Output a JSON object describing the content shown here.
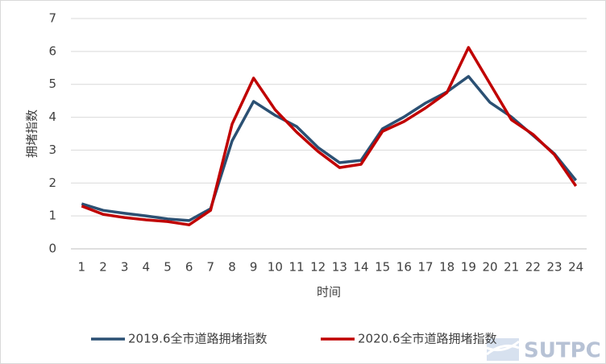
{
  "chart_data": {
    "type": "line",
    "x_label": "时间",
    "y_label": "拥堵指数",
    "categories": [
      "1",
      "2",
      "3",
      "4",
      "5",
      "6",
      "7",
      "8",
      "9",
      "10",
      "11",
      "12",
      "13",
      "14",
      "15",
      "16",
      "17",
      "18",
      "19",
      "20",
      "21",
      "22",
      "23",
      "24"
    ],
    "series": [
      {
        "name": "2019.6全市道路拥堵指数",
        "color": "#2b5073",
        "values": [
          1.37,
          1.17,
          1.08,
          1.0,
          0.91,
          0.86,
          1.22,
          3.28,
          4.48,
          4.06,
          3.72,
          3.08,
          2.62,
          2.69,
          3.65,
          4.01,
          4.43,
          4.77,
          5.24,
          4.45,
          4.01,
          3.45,
          2.89,
          2.08
        ]
      },
      {
        "name": "2020.6全市道路拥堵指数",
        "color": "#c00000",
        "values": [
          1.3,
          1.05,
          0.95,
          0.88,
          0.83,
          0.73,
          1.17,
          3.79,
          5.19,
          4.23,
          3.55,
          2.96,
          2.47,
          2.57,
          3.57,
          3.87,
          4.28,
          4.75,
          6.12,
          5.02,
          3.92,
          3.48,
          2.86,
          1.91
        ]
      }
    ],
    "ylim": [
      0,
      7
    ],
    "yticks": [
      0,
      1,
      2,
      3,
      4,
      5,
      6,
      7
    ],
    "grid": true,
    "legend": "bottom",
    "watermark": "SUTPC"
  }
}
